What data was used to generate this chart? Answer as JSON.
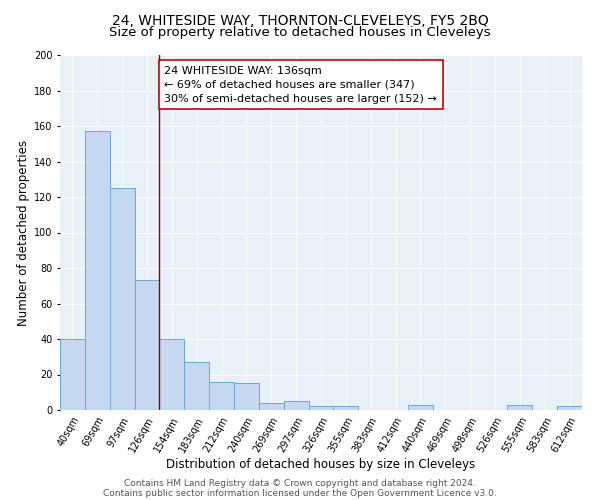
{
  "title": "24, WHITESIDE WAY, THORNTON-CLEVELEYS, FY5 2BQ",
  "subtitle": "Size of property relative to detached houses in Cleveleys",
  "xlabel": "Distribution of detached houses by size in Cleveleys",
  "ylabel": "Number of detached properties",
  "bar_color": "#c5d8f0",
  "bar_edge_color": "#6aaad4",
  "background_color": "#e8f0f8",
  "grid_color": "#ffffff",
  "categories": [
    "40sqm",
    "69sqm",
    "97sqm",
    "126sqm",
    "154sqm",
    "183sqm",
    "212sqm",
    "240sqm",
    "269sqm",
    "297sqm",
    "326sqm",
    "355sqm",
    "383sqm",
    "412sqm",
    "440sqm",
    "469sqm",
    "498sqm",
    "526sqm",
    "555sqm",
    "583sqm",
    "612sqm"
  ],
  "values": [
    40,
    157,
    125,
    73,
    40,
    27,
    16,
    15,
    4,
    5,
    2,
    2,
    0,
    0,
    3,
    0,
    0,
    0,
    3,
    0,
    2
  ],
  "ylim": [
    0,
    200
  ],
  "yticks": [
    0,
    20,
    40,
    60,
    80,
    100,
    120,
    140,
    160,
    180,
    200
  ],
  "vline_x": 3.5,
  "vline_color": "#8b0000",
  "annotation_text": "24 WHITESIDE WAY: 136sqm\n← 69% of detached houses are smaller (347)\n30% of semi-detached houses are larger (152) →",
  "annotation_box_color": "white",
  "annotation_box_edge": "#cc0000",
  "footer_line1": "Contains HM Land Registry data © Crown copyright and database right 2024.",
  "footer_line2": "Contains public sector information licensed under the Open Government Licence v3.0.",
  "title_fontsize": 10,
  "subtitle_fontsize": 9.5,
  "xlabel_fontsize": 8.5,
  "ylabel_fontsize": 8.5,
  "tick_fontsize": 7,
  "annotation_fontsize": 8,
  "footer_fontsize": 6.5
}
